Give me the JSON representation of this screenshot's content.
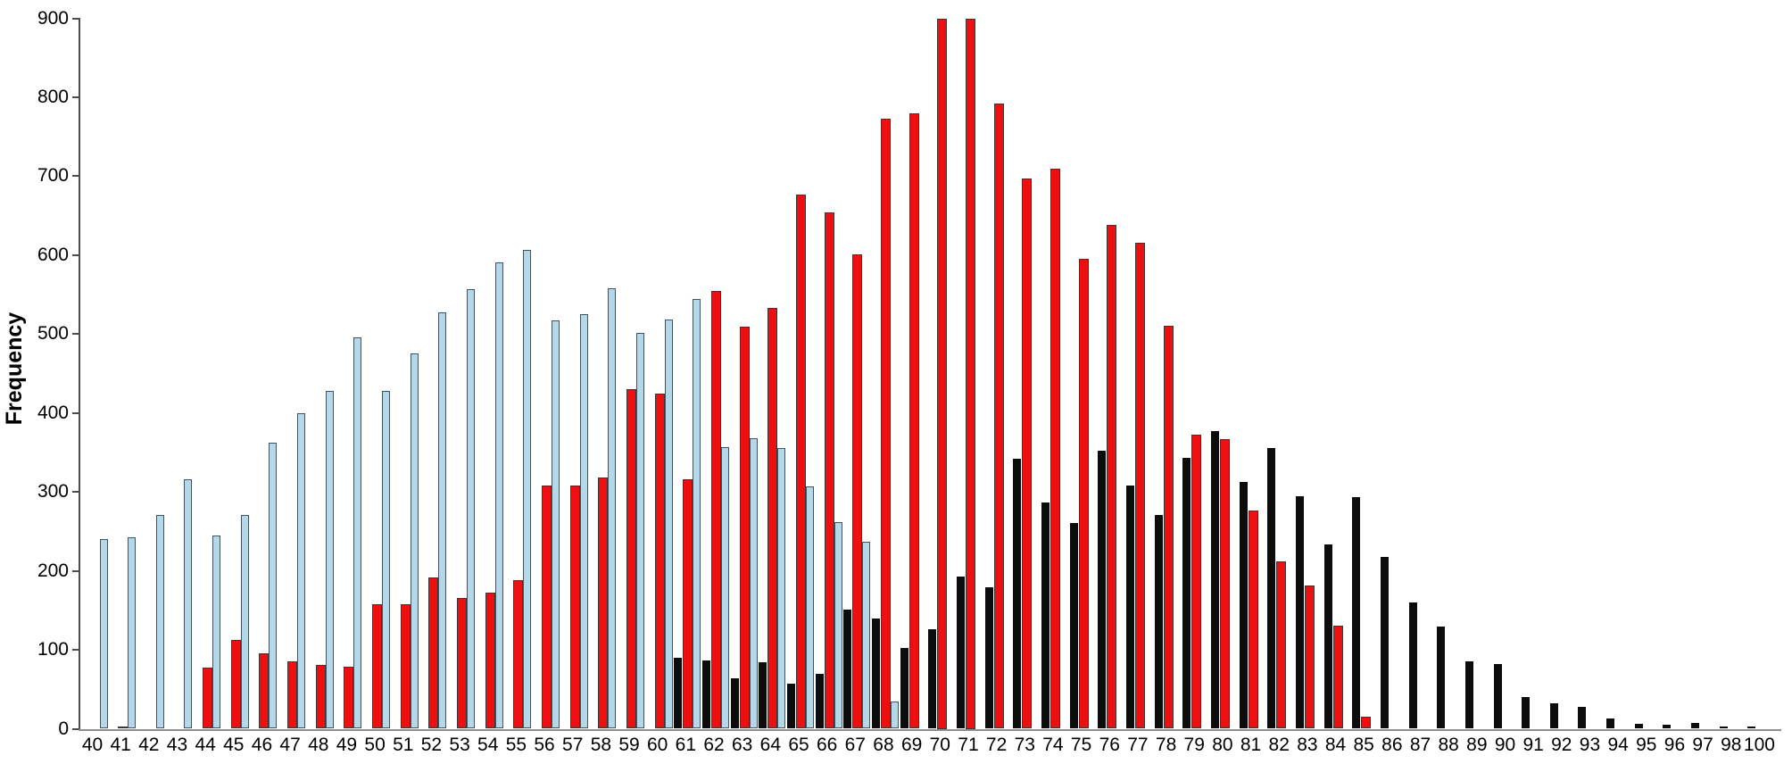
{
  "chart_data": {
    "type": "bar",
    "title": "",
    "xlabel": "",
    "ylabel": "Frequency",
    "ylim": [
      0,
      900
    ],
    "yticks": [
      0,
      100,
      200,
      300,
      400,
      500,
      600,
      700,
      800,
      900
    ],
    "grid": false,
    "legend": null,
    "categories": [
      "40",
      "41",
      "42",
      "43",
      "44",
      "45",
      "46",
      "47",
      "48",
      "49",
      "50",
      "51",
      "52",
      "53",
      "54",
      "55",
      "56",
      "57",
      "58",
      "59",
      "60",
      "61",
      "62",
      "63",
      "64",
      "65",
      "66",
      "67",
      "68",
      "69",
      "70",
      "71",
      "72",
      "73",
      "74",
      "75",
      "76",
      "77",
      "78",
      "79",
      "80",
      "81",
      "82",
      "83",
      "84",
      "85",
      "86",
      "87",
      "88",
      "89",
      "90",
      "91",
      "92",
      "93",
      "94",
      "95",
      "96",
      "97",
      "98",
      "100"
    ],
    "series": [
      {
        "name": "lightblue",
        "color": "#b4d8e9",
        "border_color": "#44545d",
        "values": [
          240,
          242,
          271,
          316,
          245,
          271,
          362,
          400,
          428,
          496,
          428,
          476,
          528,
          557,
          591,
          607,
          517,
          525,
          558,
          502,
          518,
          544,
          357,
          368,
          356,
          307,
          262,
          237,
          35,
          null,
          null,
          null,
          null,
          null,
          null,
          null,
          null,
          null,
          null,
          null,
          null,
          null,
          null,
          null,
          null,
          null,
          null,
          null,
          null,
          null,
          null,
          null,
          null,
          null,
          null,
          null,
          null,
          null,
          null,
          null
        ]
      },
      {
        "name": "red",
        "color": "#ee1010",
        "border_color": "#383838",
        "values": [
          null,
          3,
          null,
          null,
          78,
          113,
          95,
          85,
          81,
          79,
          158,
          158,
          192,
          166,
          172,
          188,
          308,
          308,
          318,
          430,
          424,
          316,
          555,
          509,
          533,
          677,
          654,
          601,
          773,
          780,
          900,
          900,
          792,
          697,
          710,
          595,
          638,
          616,
          510,
          373,
          367,
          276,
          212,
          181,
          131,
          15,
          null,
          null,
          null,
          null,
          null,
          null,
          null,
          null,
          null,
          null,
          null,
          null,
          null,
          null
        ]
      },
      {
        "name": "black",
        "color": "#0c0c0c",
        "border_color": "#0c0c0c",
        "values": [
          null,
          null,
          null,
          null,
          null,
          null,
          null,
          null,
          null,
          null,
          null,
          null,
          null,
          null,
          null,
          null,
          null,
          null,
          null,
          null,
          null,
          90,
          87,
          64,
          84,
          57,
          70,
          151,
          140,
          102,
          126,
          193,
          179,
          342,
          287,
          261,
          352,
          308,
          271,
          343,
          377,
          313,
          356,
          294,
          234,
          293,
          218,
          160,
          130,
          85,
          82,
          40,
          32,
          28,
          13,
          6,
          5,
          7,
          3,
          3
        ]
      }
    ]
  }
}
